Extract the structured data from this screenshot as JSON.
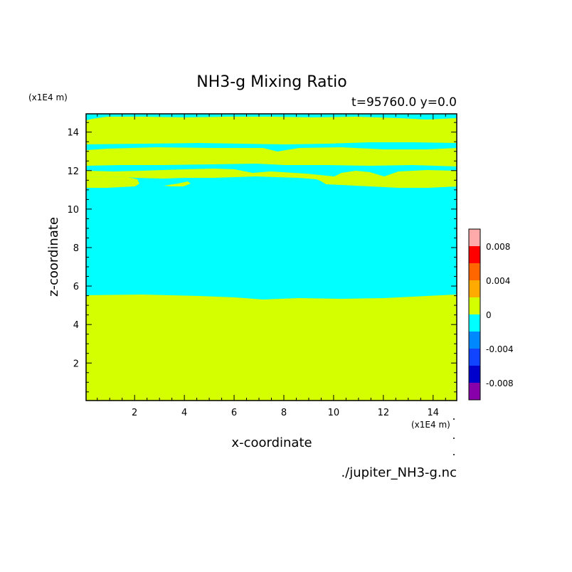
{
  "chart_data": {
    "type": "heatmap",
    "title": "NH3-g Mixing Ratio",
    "subtitle": "t=95760.0 y=0.0",
    "xlabel": "x-coordinate",
    "ylabel": "z-coordinate",
    "x_unit": "(x1E4 m)",
    "z_unit": "(x1E4 m)",
    "source_file": "./jupiter_NH3-g.nc",
    "xlim": [
      0.05,
      14.95
    ],
    "ylim": [
      0.05,
      14.95
    ],
    "xticks": [
      2,
      4,
      6,
      8,
      10,
      12,
      14
    ],
    "yticks": [
      2,
      4,
      6,
      8,
      10,
      12,
      14
    ],
    "colorbar": {
      "levels": [
        -0.01,
        -0.008,
        -0.006,
        -0.004,
        -0.002,
        0,
        0.002,
        0.004,
        0.006,
        0.008,
        0.01
      ],
      "colors": [
        "#8800aa",
        "#0000cc",
        "#1144ff",
        "#0088ff",
        "#00ffff",
        "#d4ff00",
        "#ffaa00",
        "#ff6600",
        "#ff0000",
        "#ffaaaa"
      ],
      "tick_values": [
        -0.008,
        -0.004,
        0,
        0.004,
        0.008
      ],
      "tick_labels": [
        "-0.008",
        "-0.004",
        "0",
        "0.004",
        "0.008"
      ]
    },
    "regions": [
      {
        "z_bottom": 0.05,
        "z_top": 5.4,
        "level": "0 to 0.002"
      },
      {
        "z_bottom": 5.4,
        "z_top": 11.2,
        "level": "-0.002 to 0"
      },
      {
        "z_bottom": 11.2,
        "z_top": 11.9,
        "level": "0 to 0.002"
      },
      {
        "z_bottom": 11.9,
        "z_top": 12.3,
        "level": "-0.002 to 0"
      },
      {
        "z_bottom": 12.3,
        "z_top": 13.1,
        "level": "0 to 0.002"
      },
      {
        "z_bottom": 13.1,
        "z_top": 13.5,
        "level": "-0.002 to 0"
      },
      {
        "z_bottom": 13.5,
        "z_top": 14.6,
        "level": "0 to 0.002"
      },
      {
        "z_bottom": 14.6,
        "z_top": 14.95,
        "level": "-0.002 to 0"
      }
    ]
  }
}
